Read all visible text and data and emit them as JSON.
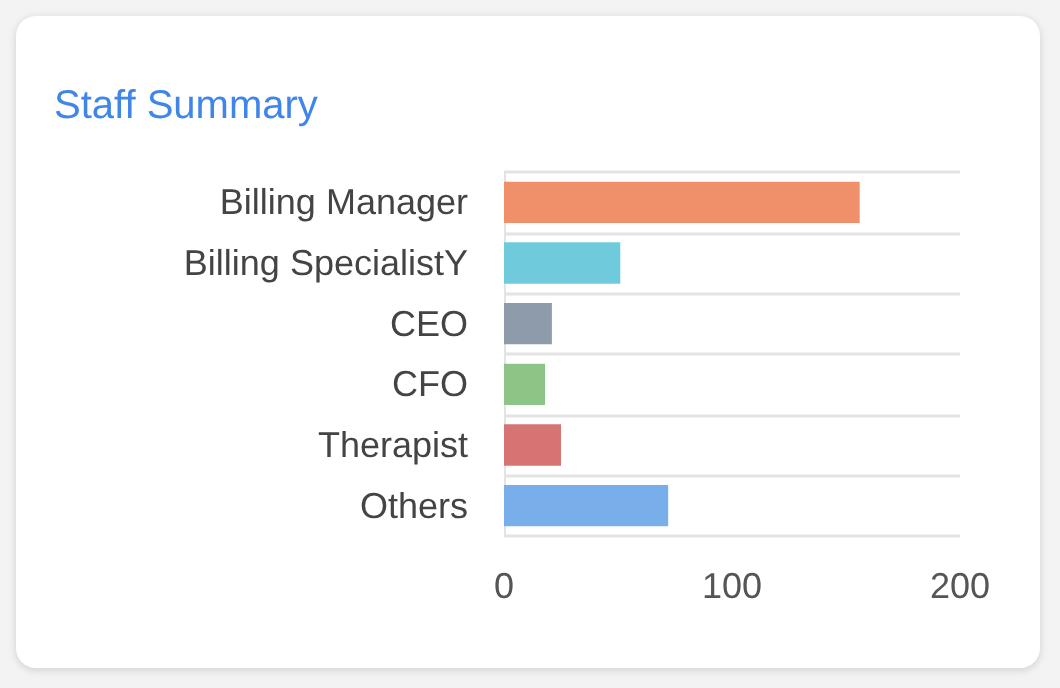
{
  "chart_data": {
    "type": "bar",
    "orientation": "horizontal",
    "title": "Staff Summary",
    "categories": [
      "Billing Manager",
      "Billing SpecialistY",
      "CEO",
      "CFO",
      "Therapist",
      "Others"
    ],
    "values": [
      156,
      51,
      21,
      18,
      25,
      72
    ],
    "colors": [
      "#f0906a",
      "#6fcbdb",
      "#8e9bab",
      "#8dc587",
      "#d67474",
      "#78aeea"
    ],
    "xlim": [
      0,
      200
    ],
    "xticks": [
      0,
      100,
      200
    ],
    "grid": "y"
  }
}
